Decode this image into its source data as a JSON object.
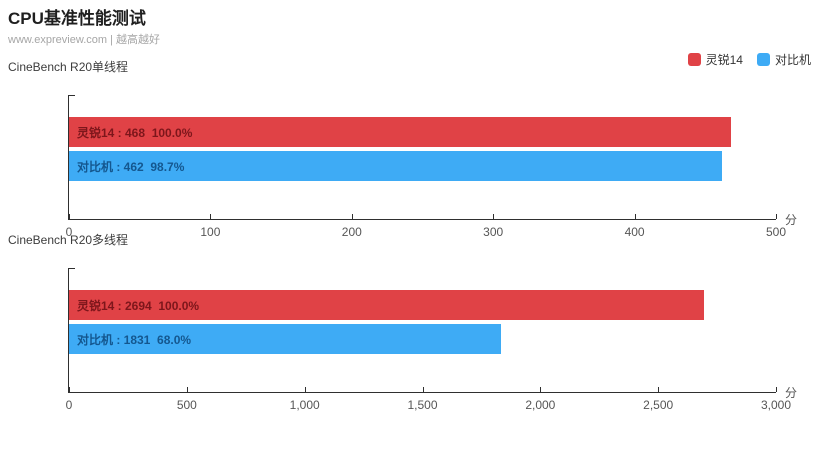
{
  "header": {
    "title": "CPU基准性能测试",
    "subtitle": "www.expreview.com | 越高越好"
  },
  "legend": [
    {
      "label": "灵锐14",
      "color": "#e04246",
      "text_color": "#7d161b"
    },
    {
      "label": "对比机",
      "color": "#3eabf5",
      "text_color": "#14578f"
    }
  ],
  "colors": {
    "axis": "#2f2f2f",
    "tick_label": "#565656",
    "series_red": "#e04246",
    "series_blue": "#3eabf5"
  },
  "chart_data": [
    {
      "type": "bar",
      "orientation": "horizontal",
      "title": "CineBench R20单线程",
      "categories": [
        "灵锐14",
        "对比机"
      ],
      "series": [
        {
          "name": "灵锐14",
          "value": 468,
          "percent": "100.0%",
          "color_index": 0
        },
        {
          "name": "对比机",
          "value": 462,
          "percent": "98.7%",
          "color_index": 1
        }
      ],
      "xlim": [
        0,
        500
      ],
      "tick_labels": [
        "0",
        "100",
        "200",
        "300",
        "400",
        "500"
      ],
      "xlabel": "分",
      "legend_position": "top-right",
      "grid": false
    },
    {
      "type": "bar",
      "orientation": "horizontal",
      "title": "CineBench R20多线程",
      "categories": [
        "灵锐14",
        "对比机"
      ],
      "series": [
        {
          "name": "灵锐14",
          "value": 2694,
          "percent": "100.0%",
          "color_index": 0
        },
        {
          "name": "对比机",
          "value": 1831,
          "percent": "68.0%",
          "color_index": 1
        }
      ],
      "xlim": [
        0,
        3000
      ],
      "tick_labels": [
        "0",
        "500",
        "1,000",
        "1,500",
        "2,000",
        "2,500",
        "3,000"
      ],
      "xlabel": "分",
      "legend_position": "top-right",
      "grid": false
    }
  ]
}
